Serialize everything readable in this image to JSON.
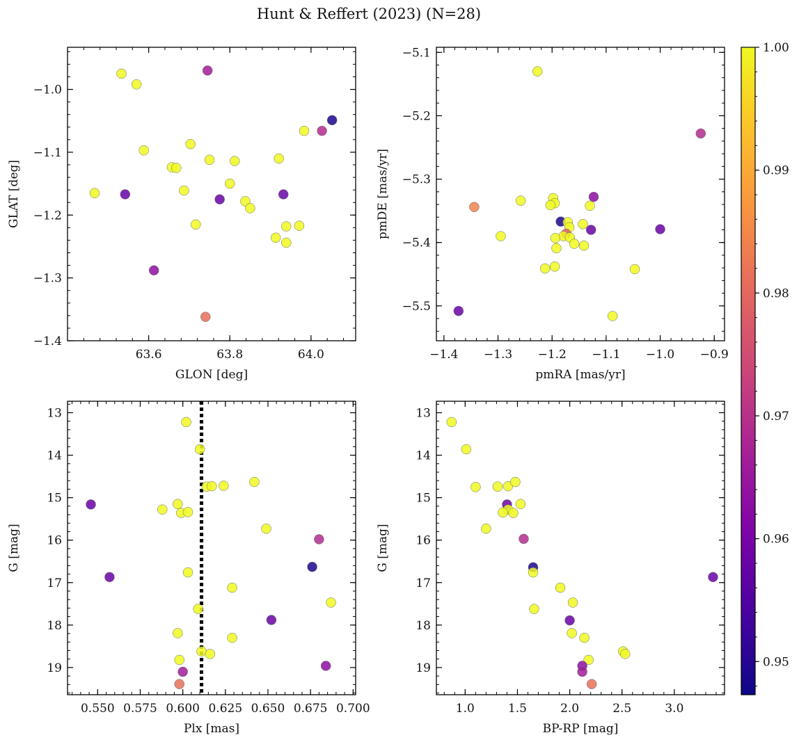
{
  "figure": {
    "title": "Hunt & Reffert (2023) (N=28)",
    "colorbar": {
      "min": 0.9473,
      "max": 1.0,
      "ticks": [
        "0.95",
        "0.96",
        "0.97",
        "0.98",
        "0.99",
        "1.00"
      ],
      "tick_values": [
        0.95,
        0.96,
        0.97,
        0.98,
        0.99,
        1.0
      ],
      "colormap": "plasma"
    }
  },
  "chart_data": [
    {
      "type": "scatter",
      "xlabel": "GLON [deg]",
      "ylabel": "GLAT [deg]",
      "xlim": [
        63.4,
        64.11
      ],
      "ylim": [
        -1.4,
        -0.933
      ],
      "x_ticks": [
        63.6,
        63.8,
        64.0
      ],
      "x_tick_labels": [
        "63.6",
        "63.8",
        "64.0"
      ],
      "y_ticks": [
        -1.0,
        -1.1,
        -1.2,
        -1.3,
        -1.4
      ],
      "y_tick_labels": [
        "−1.0",
        "−1.1",
        "−1.2",
        "−1.3",
        "−1.4"
      ],
      "points": [
        {
          "x": 63.533,
          "y": -0.975,
          "c": 1.0
        },
        {
          "x": 63.57,
          "y": -0.992,
          "c": 1.0
        },
        {
          "x": 63.745,
          "y": -0.97,
          "c": 0.966
        },
        {
          "x": 64.052,
          "y": -1.049,
          "c": 0.949
        },
        {
          "x": 64.027,
          "y": -1.066,
          "c": 0.969
        },
        {
          "x": 63.983,
          "y": -1.066,
          "c": 1.0
        },
        {
          "x": 63.588,
          "y": -1.097,
          "c": 1.0
        },
        {
          "x": 63.703,
          "y": -1.087,
          "c": 1.0
        },
        {
          "x": 63.75,
          "y": -1.112,
          "c": 1.0
        },
        {
          "x": 63.812,
          "y": -1.114,
          "c": 1.0
        },
        {
          "x": 63.921,
          "y": -1.11,
          "c": 1.0
        },
        {
          "x": 63.657,
          "y": -1.124,
          "c": 1.0
        },
        {
          "x": 63.668,
          "y": -1.125,
          "c": 1.0
        },
        {
          "x": 63.467,
          "y": -1.165,
          "c": 1.0
        },
        {
          "x": 63.542,
          "y": -1.167,
          "c": 0.958
        },
        {
          "x": 63.687,
          "y": -1.161,
          "c": 1.0
        },
        {
          "x": 63.8,
          "y": -1.15,
          "c": 1.0
        },
        {
          "x": 63.775,
          "y": -1.175,
          "c": 0.958
        },
        {
          "x": 63.932,
          "y": -1.167,
          "c": 0.958
        },
        {
          "x": 63.838,
          "y": -1.178,
          "c": 1.0
        },
        {
          "x": 63.85,
          "y": -1.189,
          "c": 1.0
        },
        {
          "x": 63.716,
          "y": -1.215,
          "c": 1.0
        },
        {
          "x": 63.939,
          "y": -1.218,
          "c": 1.0
        },
        {
          "x": 63.971,
          "y": -1.217,
          "c": 1.0
        },
        {
          "x": 63.913,
          "y": -1.236,
          "c": 1.0
        },
        {
          "x": 63.939,
          "y": -1.244,
          "c": 1.0
        },
        {
          "x": 63.613,
          "y": -1.288,
          "c": 0.963
        },
        {
          "x": 63.74,
          "y": -1.362,
          "c": 0.981
        }
      ]
    },
    {
      "type": "scatter",
      "xlabel": "pmRA [mas/yr]",
      "ylabel": "pmDE [mas/yr]",
      "xlim": [
        -1.414,
        -0.881
      ],
      "ylim": [
        -5.555,
        -5.092
      ],
      "x_ticks": [
        -1.4,
        -1.3,
        -1.2,
        -1.1,
        -1.0,
        -0.9
      ],
      "x_tick_labels": [
        "−1.4",
        "−1.3",
        "−1.2",
        "−1.1",
        "−1.0",
        "−0.9"
      ],
      "y_ticks": [
        -5.1,
        -5.2,
        -5.3,
        -5.4,
        -5.5
      ],
      "y_tick_labels": [
        "−5.1",
        "−5.2",
        "−5.3",
        "−5.4",
        "−5.5"
      ],
      "points": [
        {
          "x": -1.227,
          "y": -5.13,
          "c": 1.0
        },
        {
          "x": -0.925,
          "y": -5.228,
          "c": 0.969
        },
        {
          "x": -1.344,
          "y": -5.344,
          "c": 0.984
        },
        {
          "x": -1.258,
          "y": -5.334,
          "c": 1.0
        },
        {
          "x": -1.198,
          "y": -5.33,
          "c": 1.0
        },
        {
          "x": -1.195,
          "y": -5.338,
          "c": 1.0
        },
        {
          "x": -1.203,
          "y": -5.341,
          "c": 1.0
        },
        {
          "x": -1.13,
          "y": -5.342,
          "c": 1.0
        },
        {
          "x": -1.123,
          "y": -5.328,
          "c": 0.963
        },
        {
          "x": -1.295,
          "y": -5.39,
          "c": 1.0
        },
        {
          "x": -1.184,
          "y": -5.367,
          "c": 0.949
        },
        {
          "x": -1.171,
          "y": -5.368,
          "c": 1.0
        },
        {
          "x": -1.168,
          "y": -5.376,
          "c": 1.0
        },
        {
          "x": -1.143,
          "y": -5.371,
          "c": 1.0
        },
        {
          "x": -1.128,
          "y": -5.38,
          "c": 0.958
        },
        {
          "x": -1.0,
          "y": -5.379,
          "c": 0.958
        },
        {
          "x": -1.174,
          "y": -5.386,
          "c": 0.979
        },
        {
          "x": -1.179,
          "y": -5.39,
          "c": 1.0
        },
        {
          "x": -1.167,
          "y": -5.392,
          "c": 1.0
        },
        {
          "x": -1.194,
          "y": -5.393,
          "c": 1.0
        },
        {
          "x": -1.159,
          "y": -5.402,
          "c": 1.0
        },
        {
          "x": -1.141,
          "y": -5.405,
          "c": 1.0
        },
        {
          "x": -1.192,
          "y": -5.409,
          "c": 1.0
        },
        {
          "x": -1.213,
          "y": -5.441,
          "c": 1.0
        },
        {
          "x": -1.195,
          "y": -5.438,
          "c": 1.0
        },
        {
          "x": -1.047,
          "y": -5.442,
          "c": 1.0
        },
        {
          "x": -1.373,
          "y": -5.508,
          "c": 0.958
        },
        {
          "x": -1.088,
          "y": -5.516,
          "c": 1.0
        }
      ]
    },
    {
      "type": "scatter",
      "xlabel": "Plx [mas]",
      "ylabel": "G [mag]",
      "xlim": [
        0.5323,
        0.7015
      ],
      "ylim": [
        19.64,
        12.73
      ],
      "y_inverted": true,
      "vline_x": 0.611,
      "x_ticks": [
        0.55,
        0.575,
        0.6,
        0.625,
        0.65,
        0.675,
        0.7
      ],
      "x_tick_labels": [
        "0.550",
        "0.575",
        "0.600",
        "0.625",
        "0.650",
        "0.675",
        "0.700"
      ],
      "y_ticks": [
        13,
        14,
        15,
        16,
        17,
        18,
        19
      ],
      "y_tick_labels": [
        "13",
        "14",
        "15",
        "16",
        "17",
        "18",
        "19"
      ],
      "points": [
        {
          "x": 0.602,
          "y": 13.22,
          "c": 1.0
        },
        {
          "x": 0.61,
          "y": 13.86,
          "c": 1.0
        },
        {
          "x": 0.642,
          "y": 14.63,
          "c": 1.0
        },
        {
          "x": 0.614,
          "y": 14.74,
          "c": 1.0
        },
        {
          "x": 0.617,
          "y": 14.73,
          "c": 1.0
        },
        {
          "x": 0.624,
          "y": 14.72,
          "c": 1.0
        },
        {
          "x": 0.546,
          "y": 15.16,
          "c": 0.958
        },
        {
          "x": 0.597,
          "y": 15.15,
          "c": 1.0
        },
        {
          "x": 0.588,
          "y": 15.28,
          "c": 1.0
        },
        {
          "x": 0.599,
          "y": 15.36,
          "c": 1.0
        },
        {
          "x": 0.603,
          "y": 15.34,
          "c": 1.0
        },
        {
          "x": 0.649,
          "y": 15.73,
          "c": 1.0
        },
        {
          "x": 0.68,
          "y": 15.98,
          "c": 0.969
        },
        {
          "x": 0.676,
          "y": 16.63,
          "c": 0.949
        },
        {
          "x": 0.603,
          "y": 16.76,
          "c": 1.0
        },
        {
          "x": 0.557,
          "y": 16.87,
          "c": 0.958
        },
        {
          "x": 0.629,
          "y": 17.12,
          "c": 1.0
        },
        {
          "x": 0.687,
          "y": 17.47,
          "c": 1.0
        },
        {
          "x": 0.609,
          "y": 17.62,
          "c": 1.0
        },
        {
          "x": 0.652,
          "y": 17.88,
          "c": 0.958
        },
        {
          "x": 0.597,
          "y": 18.19,
          "c": 1.0
        },
        {
          "x": 0.629,
          "y": 18.3,
          "c": 1.0
        },
        {
          "x": 0.611,
          "y": 18.62,
          "c": 1.0
        },
        {
          "x": 0.616,
          "y": 18.68,
          "c": 1.0
        },
        {
          "x": 0.598,
          "y": 18.82,
          "c": 1.0
        },
        {
          "x": 0.684,
          "y": 18.96,
          "c": 0.963
        },
        {
          "x": 0.6,
          "y": 19.1,
          "c": 0.966
        },
        {
          "x": 0.598,
          "y": 19.39,
          "c": 0.981
        }
      ]
    },
    {
      "type": "scatter",
      "xlabel": "BP-RP [mag]",
      "ylabel": "G [mag]",
      "xlim": [
        0.725,
        3.48
      ],
      "ylim": [
        19.64,
        12.73
      ],
      "y_inverted": true,
      "x_ticks": [
        1.0,
        1.5,
        2.0,
        2.5,
        3.0
      ],
      "x_tick_labels": [
        "1.0",
        "1.5",
        "2.0",
        "2.5",
        "3.0"
      ],
      "y_ticks": [
        13,
        14,
        15,
        16,
        17,
        18,
        19
      ],
      "y_tick_labels": [
        "13",
        "14",
        "15",
        "16",
        "17",
        "18",
        "19"
      ],
      "points": [
        {
          "x": 0.87,
          "y": 13.22,
          "c": 1.0
        },
        {
          "x": 1.01,
          "y": 13.86,
          "c": 1.0
        },
        {
          "x": 1.1,
          "y": 14.75,
          "c": 1.0
        },
        {
          "x": 1.31,
          "y": 14.74,
          "c": 1.0
        },
        {
          "x": 1.41,
          "y": 14.73,
          "c": 1.0
        },
        {
          "x": 1.48,
          "y": 14.63,
          "c": 1.0
        },
        {
          "x": 1.4,
          "y": 15.16,
          "c": 0.958
        },
        {
          "x": 1.53,
          "y": 15.15,
          "c": 1.0
        },
        {
          "x": 1.41,
          "y": 15.28,
          "c": 1.0
        },
        {
          "x": 1.36,
          "y": 15.35,
          "c": 1.0
        },
        {
          "x": 1.46,
          "y": 15.36,
          "c": 1.0
        },
        {
          "x": 1.2,
          "y": 15.73,
          "c": 1.0
        },
        {
          "x": 1.56,
          "y": 15.97,
          "c": 0.969
        },
        {
          "x": 1.65,
          "y": 16.64,
          "c": 0.949
        },
        {
          "x": 1.65,
          "y": 16.76,
          "c": 1.0
        },
        {
          "x": 3.37,
          "y": 16.87,
          "c": 0.958
        },
        {
          "x": 1.91,
          "y": 17.12,
          "c": 1.0
        },
        {
          "x": 2.03,
          "y": 17.47,
          "c": 1.0
        },
        {
          "x": 1.66,
          "y": 17.62,
          "c": 1.0
        },
        {
          "x": 2.0,
          "y": 17.89,
          "c": 0.958
        },
        {
          "x": 2.02,
          "y": 18.19,
          "c": 1.0
        },
        {
          "x": 2.14,
          "y": 18.3,
          "c": 1.0
        },
        {
          "x": 2.18,
          "y": 18.82,
          "c": 1.0
        },
        {
          "x": 2.51,
          "y": 18.62,
          "c": 1.0
        },
        {
          "x": 2.53,
          "y": 18.68,
          "c": 1.0
        },
        {
          "x": 2.12,
          "y": 18.96,
          "c": 0.963
        },
        {
          "x": 2.12,
          "y": 19.1,
          "c": 0.966
        },
        {
          "x": 2.21,
          "y": 19.39,
          "c": 0.981
        }
      ]
    }
  ]
}
